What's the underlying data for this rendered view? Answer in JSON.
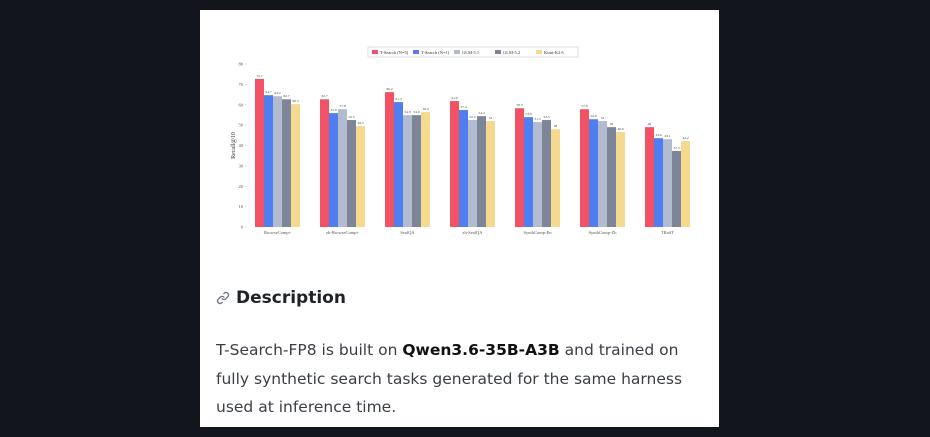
{
  "chart_data": {
    "type": "bar",
    "y_label": "Recall@10",
    "categories": [
      "BrowseComp+",
      "zh-BrowseComp+",
      "SealQA",
      "zh-SealQA",
      "SynthComp-En",
      "SynthComp-Zh",
      "TRaST"
    ],
    "series": [
      {
        "name": "T-Search (N=5)",
        "color": "#f25266",
        "values": [
          72.7,
          62.7,
          66.2,
          61.8,
          58.3,
          57.8,
          49.0
        ]
      },
      {
        "name": "T-Search (N=1)",
        "color": "#4e7ef0",
        "values": [
          64.7,
          55.9,
          61.3,
          57.4,
          53.9,
          52.9,
          43.6
        ]
      },
      {
        "name": "GLM-5.1",
        "color": "#b3bbd0",
        "values": [
          64.2,
          57.8,
          54.9,
          52.5,
          51.5,
          52.0,
          43.1
        ]
      },
      {
        "name": "GLM-5.2",
        "color": "#7d8699",
        "values": [
          62.7,
          52.5,
          54.9,
          54.4,
          52.5,
          49.0,
          37.3
        ]
      },
      {
        "name": "Kimi-K2.6",
        "color": "#f4d98e",
        "values": [
          60.3,
          49.5,
          56.4,
          52.0,
          48.0,
          46.6,
          42.2
        ]
      }
    ],
    "ylim": [
      0,
      80
    ],
    "yticks": [
      0,
      10,
      20,
      30,
      40,
      50,
      60,
      70,
      80
    ],
    "legend": "top"
  },
  "description": {
    "heading": "Description",
    "paragraph": [
      "T-Search-FP8 is built on ",
      "Qwen3.6-35B-A3B",
      " and trained on fully synthetic search tasks generated for the same harness used at inference time."
    ]
  }
}
